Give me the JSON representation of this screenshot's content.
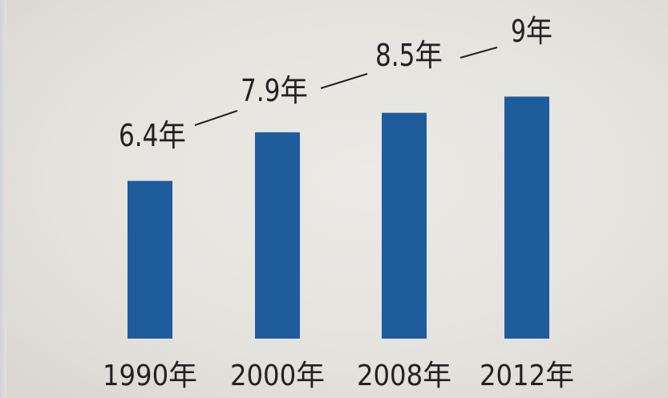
{
  "chart_data": {
    "type": "bar",
    "categories": [
      "1990年",
      "2000年",
      "2008年",
      "2012年"
    ],
    "values": [
      6.4,
      7.9,
      8.5,
      9
    ],
    "data_labels": [
      "6.4年",
      "7.9年",
      "8.5年",
      "9年"
    ],
    "title": "",
    "xlabel": "",
    "ylabel": "",
    "grid": false,
    "bar_color": "#1f5c9c"
  }
}
